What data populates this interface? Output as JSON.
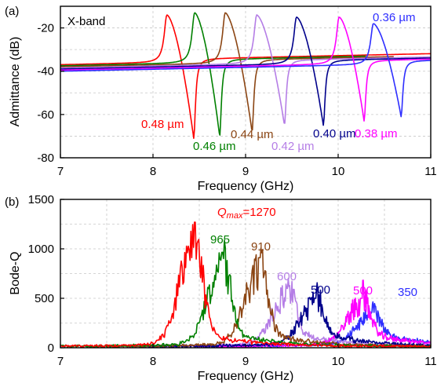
{
  "colors": {
    "0.48": "#ff0000",
    "0.46": "#008000",
    "0.44": "#8b4513",
    "0.42": "#b57ee6",
    "0.40": "#00008b",
    "0.38": "#ff00ff",
    "0.36": "#2e2eff"
  },
  "chart_data": [
    {
      "type": "line",
      "panel_label": "(a)",
      "annotation": "X-band",
      "xlabel": "Frequency (GHz)",
      "ylabel": "Admittance (dB)",
      "xlim": [
        7,
        11
      ],
      "ylim": [
        -80,
        -10
      ],
      "xticks": [
        "7",
        "8",
        "9",
        "10",
        "11"
      ],
      "yticks": [
        "-80",
        "-60",
        "-40",
        "-20"
      ],
      "grid": true,
      "series": [
        {
          "name": "0.48 µm",
          "color_key": "0.48",
          "f_res": 8.15,
          "f_anti": 8.44,
          "peak_db": -14,
          "dip_db": -71,
          "base_db": -37,
          "xmin": 7,
          "xmax": 11
        },
        {
          "name": "0.46 µm",
          "color_key": "0.46",
          "f_res": 8.45,
          "f_anti": 8.72,
          "peak_db": -13,
          "dip_db": -70,
          "base_db": -37.5,
          "xmin": 7,
          "xmax": 10.3
        },
        {
          "name": "0.44 µm",
          "color_key": "0.44",
          "f_res": 8.78,
          "f_anti": 9.07,
          "peak_db": -13,
          "dip_db": -68,
          "base_db": -38,
          "xmin": 7,
          "xmax": 10.6
        },
        {
          "name": "0.42 µm",
          "color_key": "0.42",
          "f_res": 9.12,
          "f_anti": 9.42,
          "peak_db": -14,
          "dip_db": -65,
          "base_db": -38.5,
          "xmin": 7,
          "xmax": 11
        },
        {
          "name": "0.40 µm",
          "color_key": "0.40",
          "f_res": 9.55,
          "f_anti": 9.84,
          "peak_db": -15,
          "dip_db": -65,
          "base_db": -39,
          "xmin": 7,
          "xmax": 11
        },
        {
          "name": "0.38 µm",
          "color_key": "0.38",
          "f_res": 10.01,
          "f_anti": 10.28,
          "peak_db": -15,
          "dip_db": -63,
          "base_db": -39.5,
          "xmin": 7,
          "xmax": 11
        },
        {
          "name": "0.36 µm",
          "color_key": "0.36",
          "f_res": 10.38,
          "f_anti": 10.68,
          "peak_db": -18,
          "dip_db": -61,
          "base_db": -40,
          "xmin": 7,
          "xmax": 11
        }
      ]
    },
    {
      "type": "line",
      "panel_label": "(b)",
      "xlabel": "Frequency (GHz)",
      "ylabel": "Bode-Q",
      "xlim": [
        7,
        11
      ],
      "ylim": [
        0,
        1500
      ],
      "xticks": [
        "7",
        "8",
        "9",
        "10",
        "11"
      ],
      "yticks": [
        "0",
        "500",
        "1000",
        "1500"
      ],
      "grid": true,
      "qmax_label": {
        "symbol": "Q",
        "subscript": "max",
        "value": "=1270"
      },
      "series": [
        {
          "color_key": "0.36",
          "q_peak": 350,
          "f_peak": 10.35,
          "label": "350"
        },
        {
          "color_key": "0.42",
          "q_peak": 600,
          "f_peak": 9.45,
          "label": "600"
        },
        {
          "color_key": "0.38",
          "q_peak": 500,
          "f_peak": 10.25,
          "label": "500"
        },
        {
          "color_key": "0.40",
          "q_peak": 500,
          "f_peak": 9.75,
          "label": "500"
        },
        {
          "color_key": "0.44",
          "q_peak": 910,
          "f_peak": 9.15,
          "label": "910"
        },
        {
          "color_key": "0.46",
          "q_peak": 965,
          "f_peak": 8.75,
          "label": "965"
        },
        {
          "color_key": "0.48",
          "q_peak": 1270,
          "f_peak": 8.45,
          "label": "1270"
        }
      ]
    }
  ]
}
